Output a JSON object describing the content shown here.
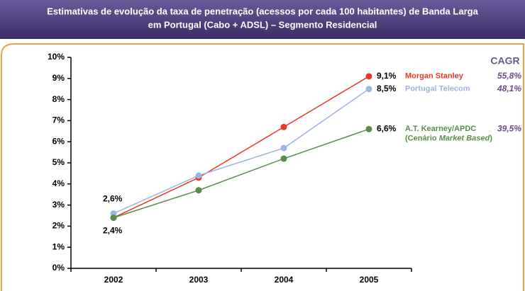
{
  "chart_data": {
    "type": "line",
    "title_lines": [
      "Estimativas de evolução da taxa de penetração (acessos por cada 100 habitantes) de Banda Larga",
      "em Portugal (Cabo + ADSL) – Segmento Residencial"
    ],
    "categories": [
      "2002",
      "2003",
      "2004",
      "2005"
    ],
    "ylim": [
      0,
      10
    ],
    "yticks": [
      {
        "value": 0,
        "label": "0%"
      },
      {
        "value": 1,
        "label": "1%"
      },
      {
        "value": 2,
        "label": "2%"
      },
      {
        "value": 3,
        "label": "3%"
      },
      {
        "value": 4,
        "label": "4%"
      },
      {
        "value": 5,
        "label": "5%"
      },
      {
        "value": 6,
        "label": "6%"
      },
      {
        "value": 7,
        "label": "7%"
      },
      {
        "value": 8,
        "label": "8%"
      },
      {
        "value": 9,
        "label": "9%"
      },
      {
        "value": 10,
        "label": "10%"
      }
    ],
    "cagr_title": "CAGR",
    "series": [
      {
        "name": "Morgan Stanley",
        "color": "#e8382a",
        "values": [
          2.4,
          4.3,
          6.7,
          9.1
        ],
        "value_labels": [
          null,
          null,
          null,
          "9,1%"
        ],
        "cagr": "55,8%"
      },
      {
        "name": "Portugal Telecom",
        "color": "#9db5e0",
        "values": [
          2.6,
          4.4,
          5.7,
          8.5
        ],
        "value_labels": [
          "2,6%",
          null,
          null,
          "8,5%"
        ],
        "cagr": "48,1%"
      },
      {
        "name": "A.T. Kearney/APDC",
        "name_parts": [
          "(Cenário ",
          "Market Based",
          ")"
        ],
        "color": "#5b8c4c",
        "values": [
          2.4,
          3.7,
          5.2,
          6.6
        ],
        "value_labels": [
          "2,4%",
          null,
          null,
          "6,6%"
        ],
        "cagr": "39,5%"
      }
    ]
  }
}
